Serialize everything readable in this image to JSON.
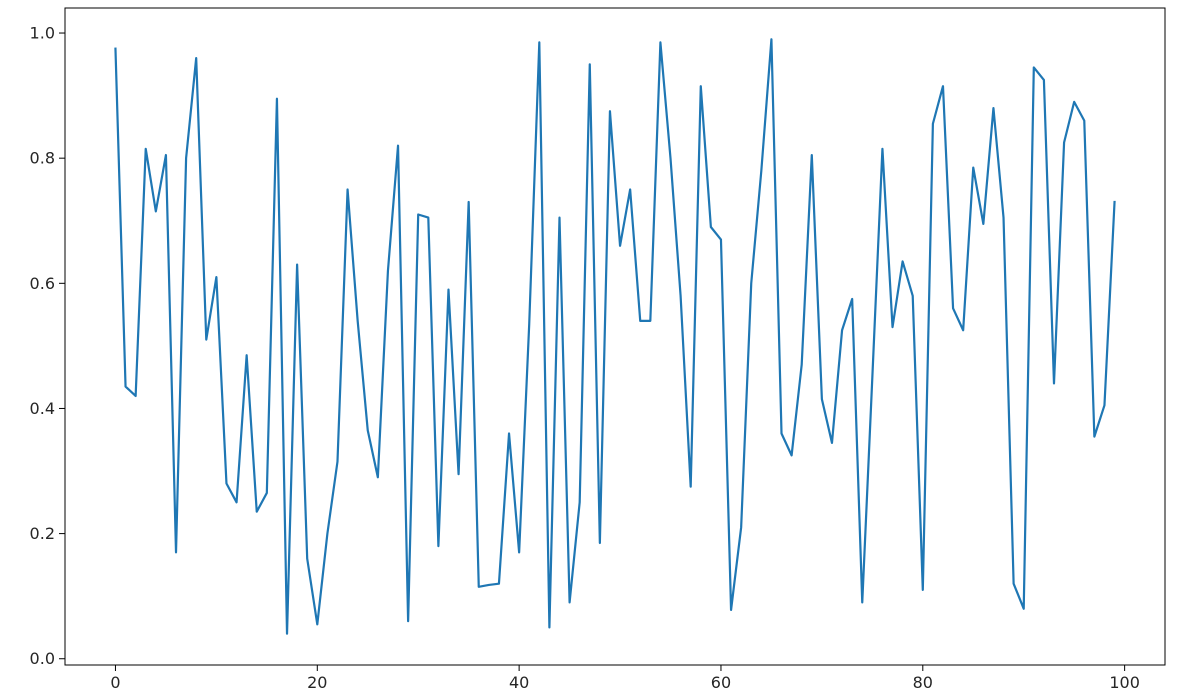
{
  "chart_data": {
    "type": "line",
    "title": "",
    "xlabel": "",
    "ylabel": "",
    "xlim": [
      -5,
      104
    ],
    "ylim": [
      -0.01,
      1.04
    ],
    "xticks": [
      0,
      20,
      40,
      60,
      80,
      100
    ],
    "yticks": [
      0.0,
      0.2,
      0.4,
      0.6,
      0.8,
      1.0
    ],
    "xtick_labels": [
      "0",
      "20",
      "40",
      "60",
      "80",
      "100"
    ],
    "ytick_labels": [
      "0.0",
      "0.2",
      "0.4",
      "0.6",
      "0.8",
      "1.0"
    ],
    "grid": false,
    "legend": "none",
    "series": [
      {
        "color": "#1f77b4",
        "x": [
          0,
          1,
          2,
          3,
          4,
          5,
          6,
          7,
          8,
          9,
          10,
          11,
          12,
          13,
          14,
          15,
          16,
          17,
          18,
          19,
          20,
          21,
          22,
          23,
          24,
          25,
          26,
          27,
          28,
          29,
          30,
          31,
          32,
          33,
          34,
          35,
          36,
          37,
          38,
          39,
          40,
          41,
          42,
          43,
          44,
          45,
          46,
          47,
          48,
          49,
          50,
          51,
          52,
          53,
          54,
          55,
          56,
          57,
          58,
          59,
          60,
          61,
          62,
          63,
          64,
          65,
          66,
          67,
          68,
          69,
          70,
          71,
          72,
          73,
          74,
          75,
          76,
          77,
          78,
          79,
          80,
          81,
          82,
          83,
          84,
          85,
          86,
          87,
          88,
          89,
          90,
          91,
          92,
          93,
          94,
          95,
          96,
          97,
          98,
          99
        ],
        "y": [
          0.975,
          0.435,
          0.42,
          0.815,
          0.715,
          0.805,
          0.17,
          0.8,
          0.96,
          0.51,
          0.61,
          0.28,
          0.25,
          0.485,
          0.235,
          0.265,
          0.895,
          0.04,
          0.63,
          0.16,
          0.055,
          0.2,
          0.315,
          0.75,
          0.54,
          0.365,
          0.29,
          0.62,
          0.82,
          0.06,
          0.71,
          0.705,
          0.18,
          0.59,
          0.295,
          0.73,
          0.115,
          0.118,
          0.12,
          0.36,
          0.17,
          0.535,
          0.985,
          0.05,
          0.705,
          0.09,
          0.25,
          0.95,
          0.185,
          0.875,
          0.66,
          0.75,
          0.54,
          0.54,
          0.985,
          0.8,
          0.58,
          0.275,
          0.915,
          0.69,
          0.67,
          0.078,
          0.21,
          0.6,
          0.78,
          0.99,
          0.36,
          0.325,
          0.47,
          0.805,
          0.415,
          0.345,
          0.525,
          0.575,
          0.09,
          0.45,
          0.815,
          0.53,
          0.635,
          0.58,
          0.11,
          0.855,
          0.915,
          0.56,
          0.525,
          0.785,
          0.695,
          0.88,
          0.705,
          0.12,
          0.08,
          0.945,
          0.925,
          0.44,
          0.825,
          0.89,
          0.86,
          0.355,
          0.405,
          0.73
        ]
      }
    ]
  }
}
